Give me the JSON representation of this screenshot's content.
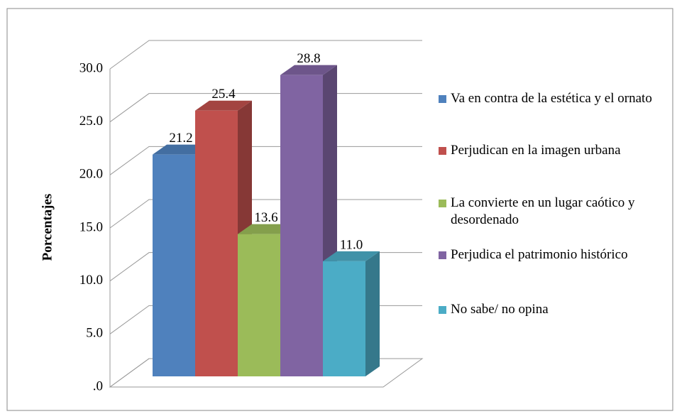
{
  "chart_data": {
    "type": "bar",
    "y_label": "Porcentajes",
    "series": [
      {
        "name": "Va en contra de la estética y el ornato",
        "color": "#4f81bd",
        "values": [
          21.2
        ],
        "value_labels": [
          "21.2"
        ]
      },
      {
        "name": "Perjudican en la imagen urbana",
        "color": "#c0504d",
        "values": [
          25.4
        ],
        "value_labels": [
          "25.4"
        ]
      },
      {
        "name": "La convierte en un lugar caótico y desordenado",
        "color": "#9bbb59",
        "values": [
          13.6
        ],
        "value_labels": [
          "13.6"
        ]
      },
      {
        "name": "Perjudica el patrimonio histórico",
        "color": "#8064a2",
        "values": [
          28.8
        ],
        "value_labels": [
          "28.8"
        ]
      },
      {
        "name": "No sabe/ no opina",
        "color": "#4bacc6",
        "values": [
          11
        ],
        "value_labels": [
          "11.0"
        ]
      }
    ],
    "ylim": [
      0,
      30
    ],
    "yticks": [
      {
        "value": 0,
        "label": ".0"
      },
      {
        "value": 5,
        "label": "5.0"
      },
      {
        "value": 10,
        "label": "10.0"
      },
      {
        "value": 15,
        "label": "15.0"
      },
      {
        "value": 20,
        "label": "20.0"
      },
      {
        "value": 25,
        "label": "25.0"
      },
      {
        "value": 30,
        "label": "30.0"
      }
    ],
    "grid": true,
    "legend": "right"
  }
}
